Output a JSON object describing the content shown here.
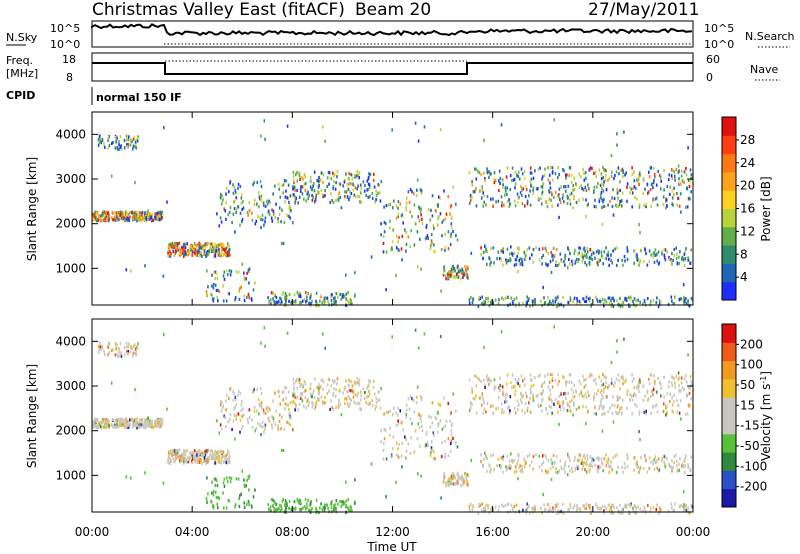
{
  "header": {
    "title": "Christmas Valley East (fitACF)",
    "beam": "Beam 20",
    "date": "27/May/2011"
  },
  "panels": {
    "nsky_label": "N.Sky",
    "nsearch_label": "N.Search",
    "nsky_ticks": [
      "10^5",
      "10^0"
    ],
    "nsky_right_ticks": [
      "10^5",
      "10^0"
    ],
    "freq_label_1": "Freq.",
    "freq_label_2": "[MHz]",
    "freq_ticks": [
      "18",
      "8"
    ],
    "nave_label": "Nave",
    "nave_ticks": [
      "60",
      "0"
    ],
    "cpid_label": "CPID",
    "cpid_text": "normal 150 IF"
  },
  "chart_data": [
    {
      "type": "heatmap",
      "name": "power",
      "ylabel": "Slant Range [km]",
      "yticks": [
        "1000",
        "2000",
        "3000",
        "4000"
      ],
      "colorbar_label": "Power [dB]",
      "colorbar_ticks": [
        "4",
        "8",
        "12",
        "16",
        "20",
        "24",
        "28"
      ],
      "colors": [
        "#1c2fff",
        "#1f66b8",
        "#2e8c6a",
        "#5fae4a",
        "#b7d23a",
        "#ffd21f",
        "#ffa31a",
        "#ff7a14",
        "#ff3d10",
        "#e0100a"
      ]
    },
    {
      "type": "heatmap",
      "name": "velocity",
      "ylabel": "Slant Range [km]",
      "yticks": [
        "1000",
        "2000",
        "3000",
        "4000"
      ],
      "colorbar_label": "Velocity [m s",
      "colorbar_label_sup": "-1",
      "colorbar_label_end": "]",
      "colorbar_ticks": [
        "200",
        "100",
        "50",
        "15",
        "-15",
        "-50",
        "-100",
        "-200"
      ],
      "colors": [
        "#1a1aa6",
        "#2a50c8",
        "#2f8a3c",
        "#58c03c",
        "#c8c8c0",
        "#c8c8c0",
        "#f0c030",
        "#f09a20",
        "#f05a18",
        "#e01010"
      ]
    }
  ],
  "xaxis": {
    "ticks": [
      "00:00",
      "04:00",
      "08:00",
      "12:00",
      "16:00",
      "20:00",
      "00:00"
    ],
    "label": "Time UT"
  }
}
